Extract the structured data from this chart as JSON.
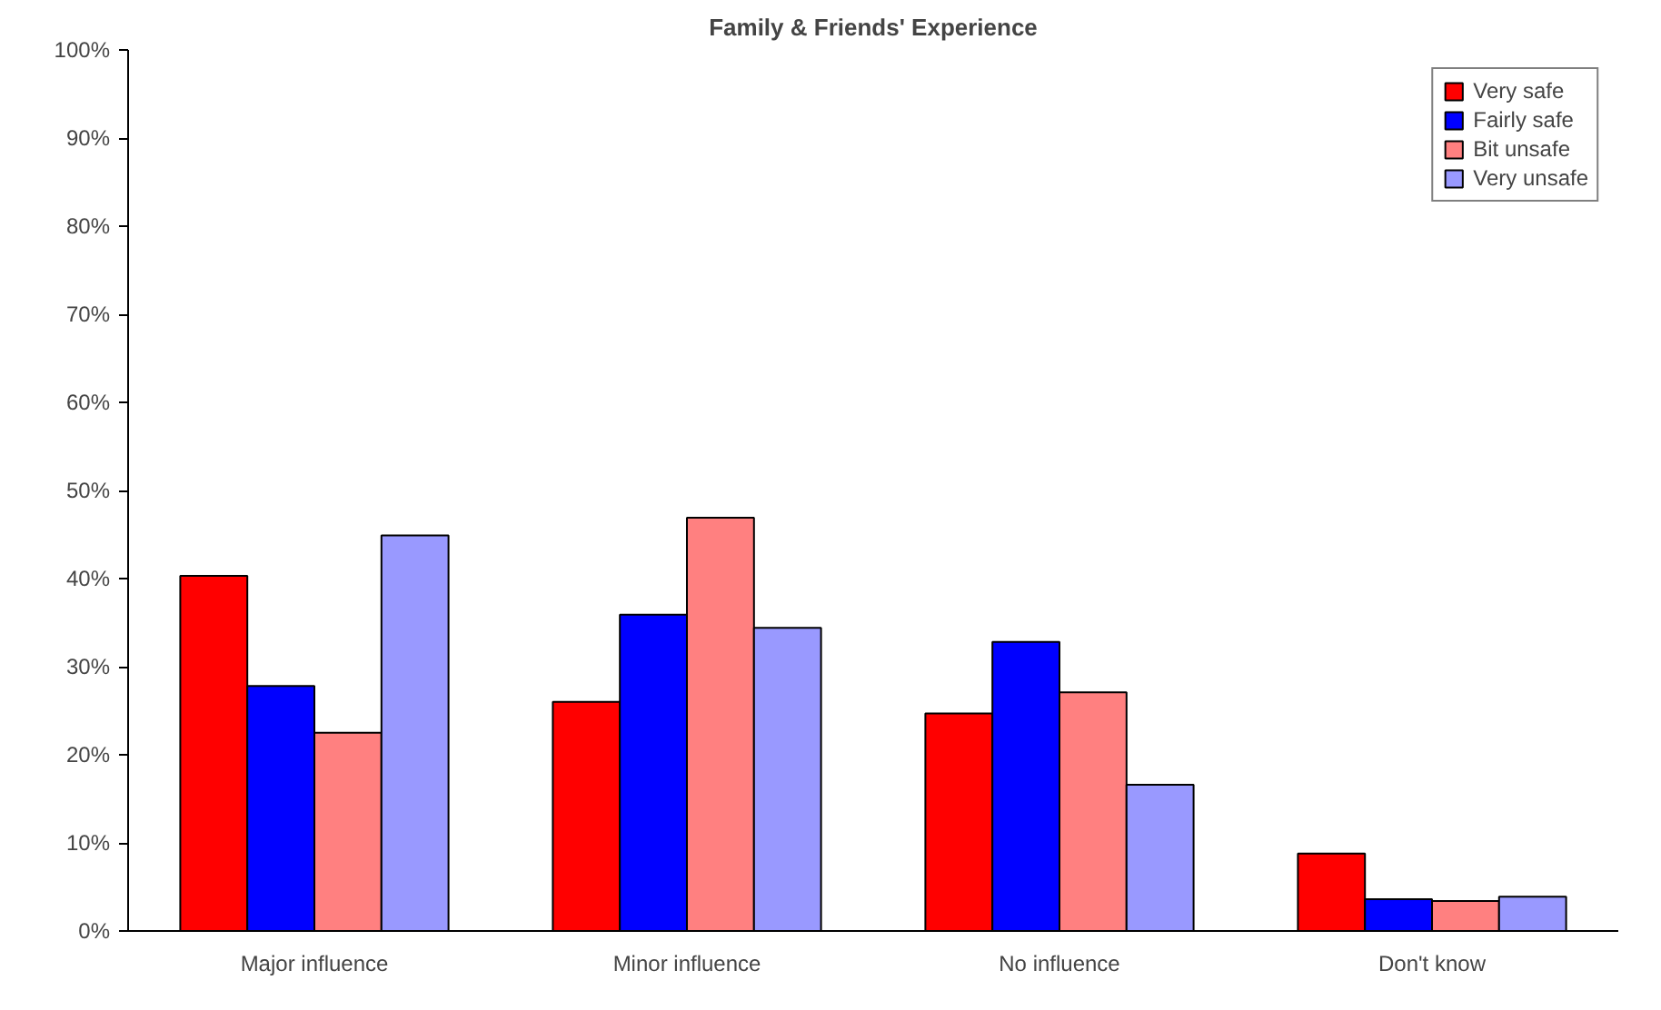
{
  "chart_data": {
    "type": "bar",
    "title": "Family & Friends' Experience",
    "categories": [
      "Major influence",
      "Minor influence",
      "No influence",
      "Don't know"
    ],
    "series": [
      {
        "name": "Very safe",
        "color": "#ff0000",
        "values": [
          40.3,
          26.0,
          24.7,
          8.8
        ]
      },
      {
        "name": "Fairly safe",
        "color": "#0000ff",
        "values": [
          27.8,
          35.9,
          32.8,
          3.6
        ]
      },
      {
        "name": "Bit unsafe",
        "color": "#ff8080",
        "values": [
          22.5,
          46.9,
          27.1,
          3.4
        ]
      },
      {
        "name": "Very unsafe",
        "color": "#9999ff",
        "values": [
          44.9,
          34.4,
          16.6,
          3.9
        ]
      }
    ],
    "ylim": [
      0,
      100
    ],
    "yticks": [
      {
        "value": 0,
        "label": "0%"
      },
      {
        "value": 10,
        "label": "10%"
      },
      {
        "value": 20,
        "label": "20%"
      },
      {
        "value": 30,
        "label": "30%"
      },
      {
        "value": 40,
        "label": "40%"
      },
      {
        "value": 50,
        "label": "50%"
      },
      {
        "value": 60,
        "label": "60%"
      },
      {
        "value": 70,
        "label": "70%"
      },
      {
        "value": 80,
        "label": "80%"
      },
      {
        "value": 90,
        "label": "90%"
      },
      {
        "value": 100,
        "label": "100%"
      }
    ],
    "grid": false,
    "legend": "top right"
  }
}
